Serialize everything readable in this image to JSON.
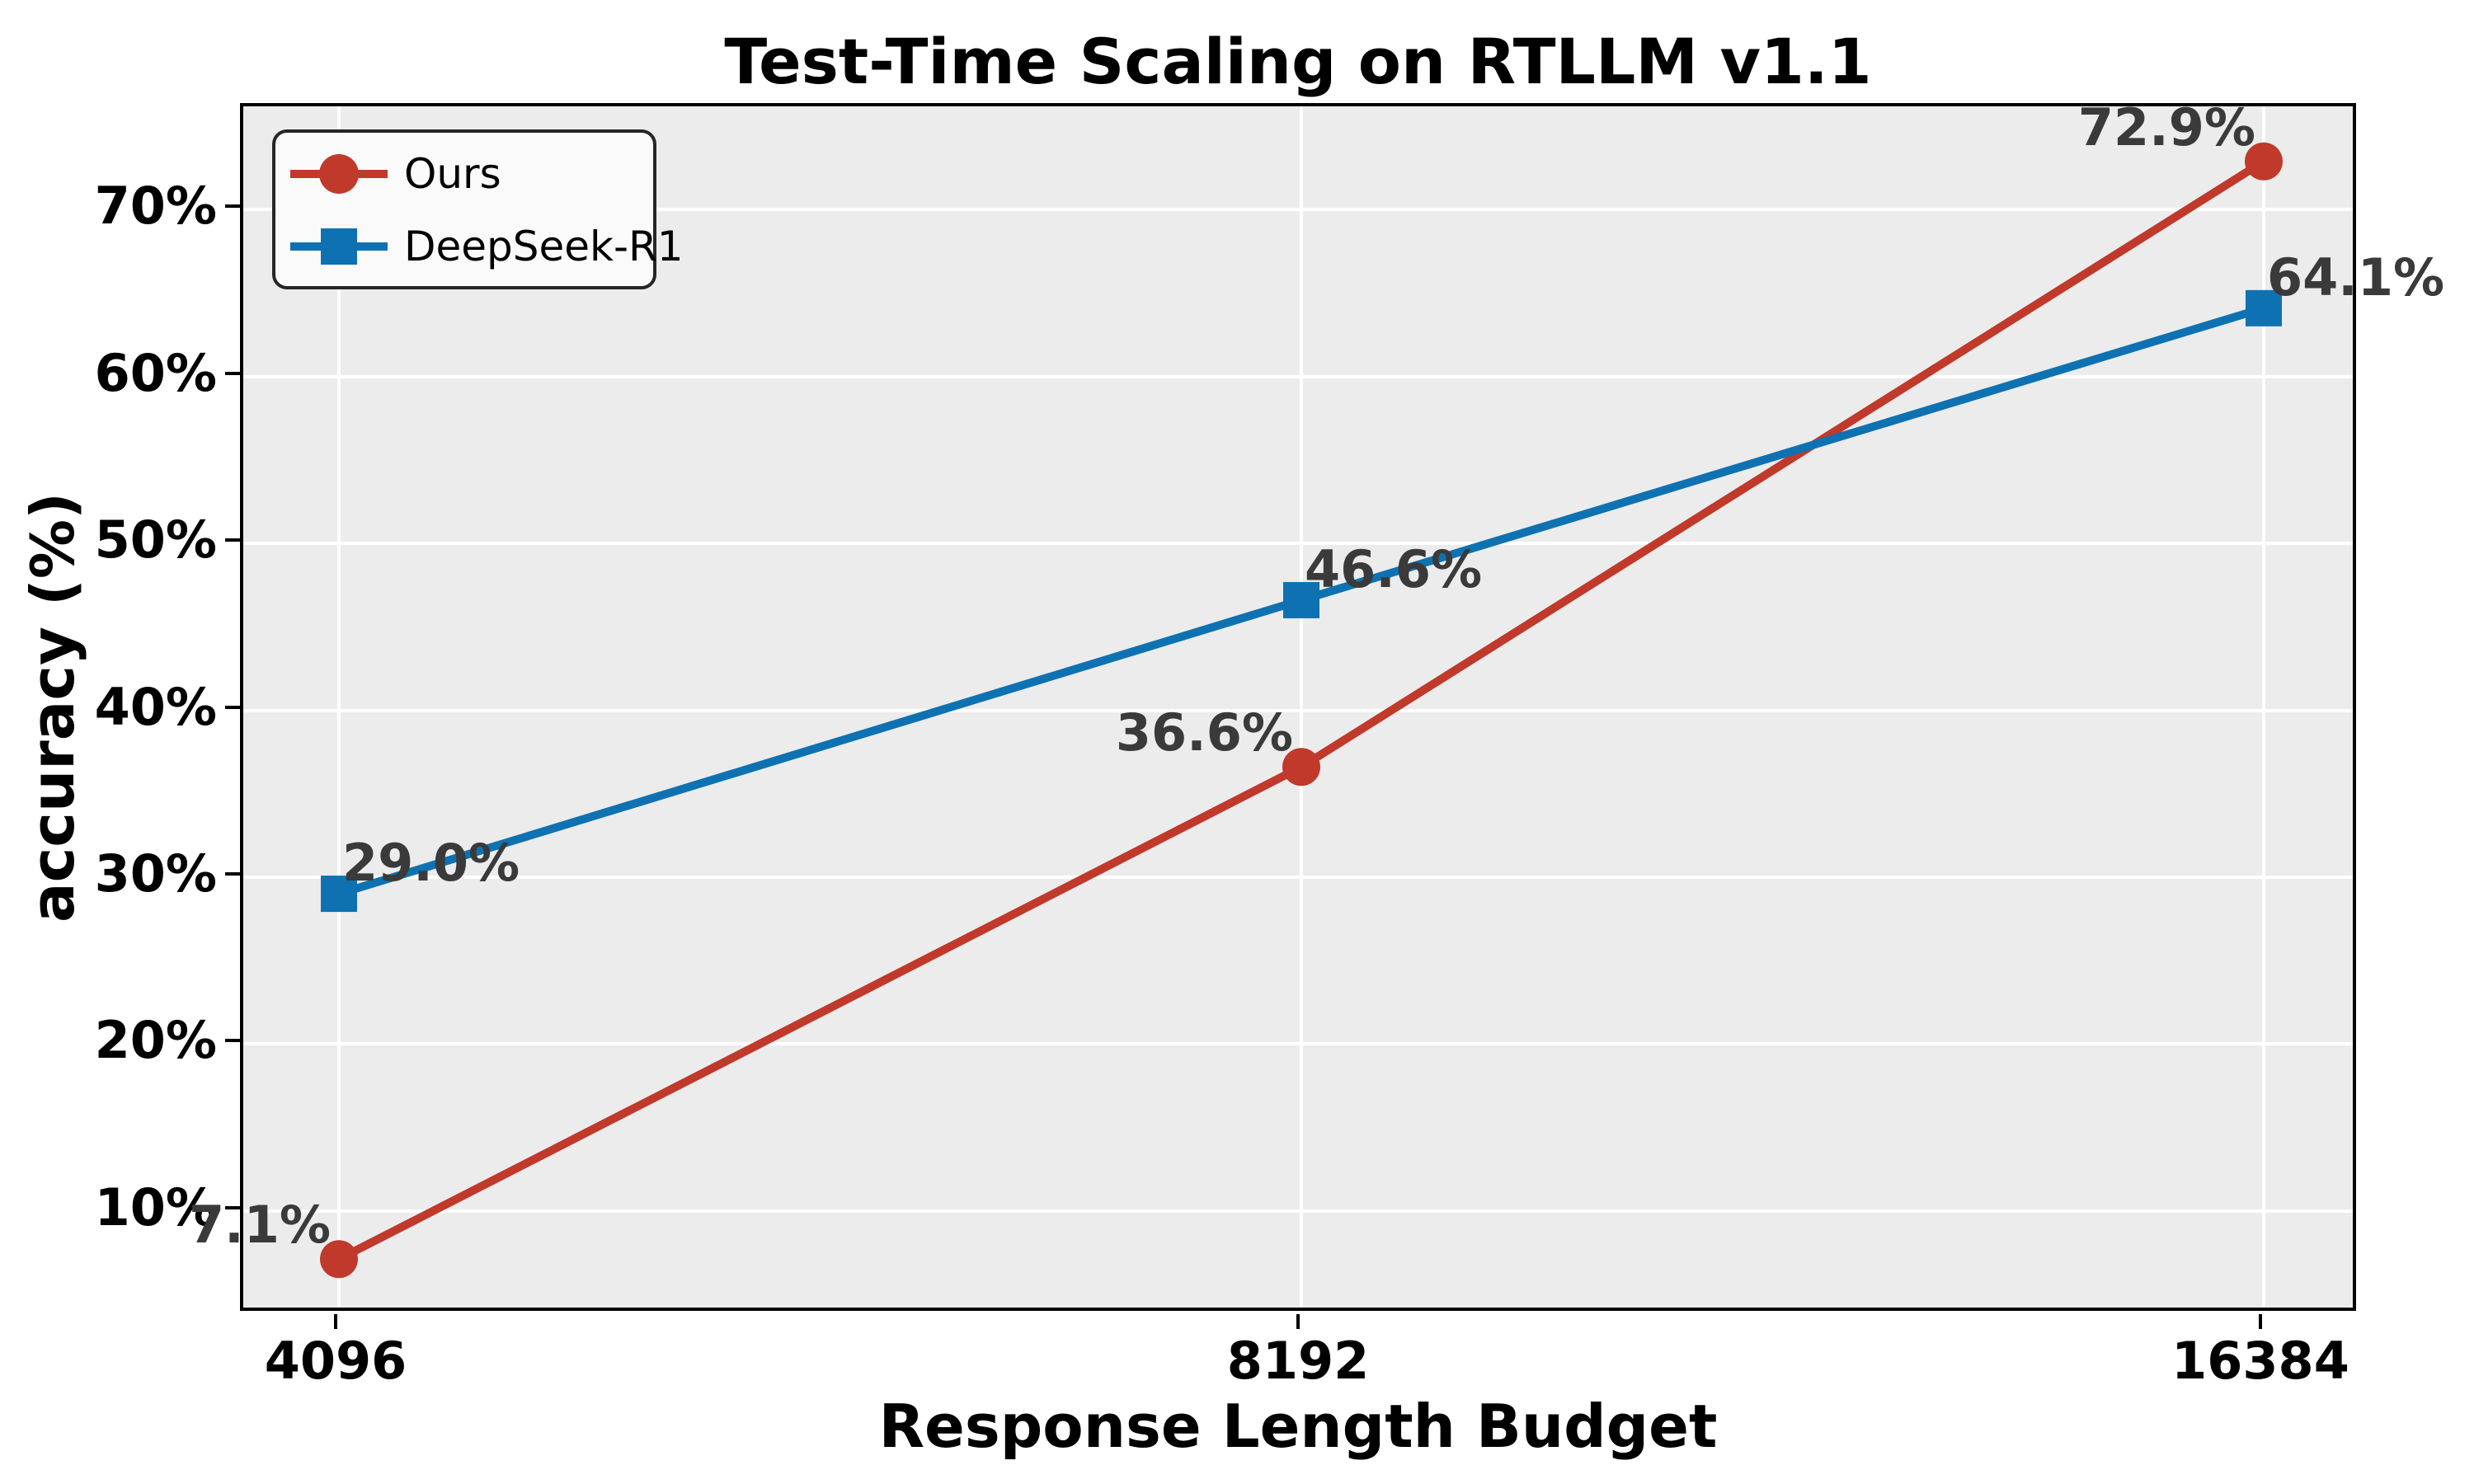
{
  "chart_data": {
    "type": "line",
    "title": "Test-Time Scaling on RTLLM v1.1",
    "xlabel": "Response Length Budget",
    "ylabel": "accuracy (%)",
    "categories": [
      "4096",
      "8192",
      "16384"
    ],
    "yticks": [
      10,
      20,
      30,
      40,
      50,
      60,
      70
    ],
    "ytick_labels": [
      "10%",
      "20%",
      "30%",
      "40%",
      "50%",
      "60%",
      "70%"
    ],
    "ylim": [
      3.8,
      76.2
    ],
    "grid": true,
    "legend_position": "upper-left",
    "colors": {
      "plot_background": "#ececec",
      "grid": "#ffffff",
      "spine": "#000000",
      "data_label": "#3a3a3a"
    },
    "series": [
      {
        "name": "Ours",
        "values": [
          7.1,
          36.6,
          72.9
        ],
        "labels": [
          "7.1%",
          "36.6%",
          "72.9%"
        ],
        "color": "#c0392b",
        "marker": "circle",
        "label_side": "left"
      },
      {
        "name": "DeepSeek-R1",
        "values": [
          29.0,
          46.6,
          64.1
        ],
        "labels": [
          "29.0%",
          "46.6%",
          "64.1%"
        ],
        "color": "#0e72b2",
        "marker": "square",
        "label_side": "right"
      }
    ]
  }
}
